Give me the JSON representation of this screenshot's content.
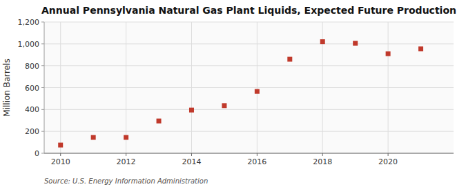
{
  "chart_data": {
    "type": "scatter",
    "title": "Annual Pennsylvania Natural Gas Plant Liquids, Expected Future Production",
    "ylabel": "Million Barrels",
    "source": "Source: U.S. Energy Information Administration",
    "x": [
      2010,
      2011,
      2012,
      2013,
      2014,
      2015,
      2016,
      2017,
      2018,
      2019,
      2020,
      2021
    ],
    "values": [
      75,
      145,
      145,
      295,
      395,
      435,
      565,
      860,
      1020,
      1005,
      910,
      955
    ],
    "color": "#c0392b",
    "marker": "square",
    "grid": true,
    "xlim": [
      2009.5,
      2022.0
    ],
    "xticks": [
      2010,
      2012,
      2014,
      2016,
      2018,
      2020
    ],
    "ylim": [
      0,
      1200
    ],
    "yticks": [
      0,
      200,
      400,
      600,
      800,
      {
        "value": 1000,
        "label": "1,000"
      },
      {
        "value": 1200,
        "label": "1,200"
      }
    ]
  }
}
